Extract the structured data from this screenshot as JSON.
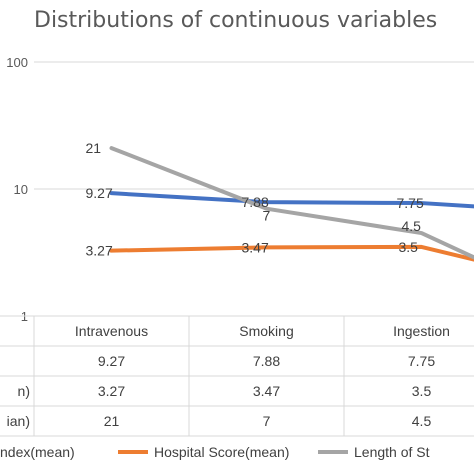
{
  "chart_data": {
    "type": "line",
    "title": "Distributions of continuous variables",
    "yscale": "log",
    "ylim": [
      1,
      100
    ],
    "ytick_labels": [
      "1",
      "10",
      "100"
    ],
    "grid": true,
    "categories": [
      "Intravenous",
      "Smoking",
      "Ingestion"
    ],
    "series": [
      {
        "name": "ndex(mean)",
        "row_label": "",
        "color": "#4472C4",
        "values": [
          9.27,
          7.88,
          7.75
        ],
        "data_labels": [
          "9.27",
          "7.88",
          "7.75"
        ]
      },
      {
        "name": "Hospital Score(mean)",
        "row_label": "n)",
        "color": "#ED7D31",
        "values": [
          3.27,
          3.47,
          3.5
        ],
        "data_labels": [
          "3.27",
          "3.47",
          "3.5"
        ]
      },
      {
        "name": "Length of St",
        "row_label": "ian)",
        "color": "#A5A5A5",
        "values": [
          21,
          7,
          4.5
        ],
        "data_labels": [
          "21",
          "7",
          "4.5"
        ]
      }
    ],
    "legend_position": "bottom"
  }
}
